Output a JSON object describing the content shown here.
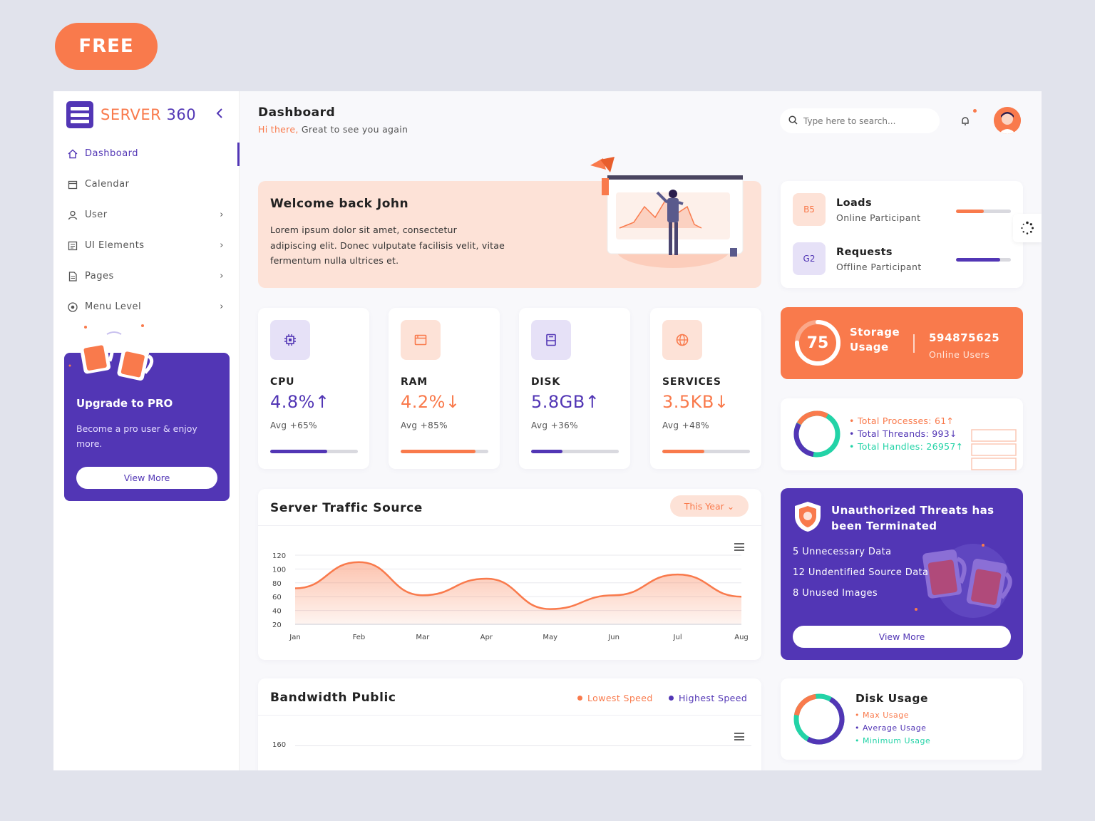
{
  "badge": "FREE",
  "brand": {
    "name_a": "SERVER",
    "name_b": "360"
  },
  "nav": [
    {
      "label": "Dashboard",
      "active": true
    },
    {
      "label": "Calendar"
    },
    {
      "label": "User"
    },
    {
      "label": "UI Elements"
    },
    {
      "label": "Pages"
    },
    {
      "label": "Menu Level"
    }
  ],
  "upgrade": {
    "title": "Upgrade to PRO",
    "text": "Become a pro user & enjoy more.",
    "button": "View More"
  },
  "header": {
    "title": "Dashboard",
    "greeting": "Hi there,",
    "subtitle": " Great to see you again"
  },
  "search": {
    "placeholder": "Type here to search..."
  },
  "welcome": {
    "title": "Welcome back John",
    "text": "Lorem ipsum dolor sit amet, consectetur adipiscing elit. Donec vulputate facilisis velit, vitae fermentum nulla ultrices et."
  },
  "stats": [
    {
      "label": "CPU",
      "value": "4.8%",
      "arrow": "↑",
      "avg": "Avg +65%",
      "color": "#5236b5",
      "bg": "#e6e1f7",
      "progress": 0.65
    },
    {
      "label": "RAM",
      "value": "4.2%",
      "arrow": "↓",
      "avg": "Avg +85%",
      "color": "#f97a4c",
      "bg": "#fde2d7",
      "progress": 0.85
    },
    {
      "label": "DISK",
      "value": "5.8GB",
      "arrow": "↑",
      "avg": "Avg +36%",
      "color": "#5236b5",
      "bg": "#e6e1f7",
      "progress": 0.36
    },
    {
      "label": "SERVICES",
      "value": "3.5KB",
      "arrow": "↓",
      "avg": "Avg +48%",
      "color": "#f97a4c",
      "bg": "#fde2d7",
      "progress": 0.48
    }
  ],
  "traffic": {
    "title": "Server Traffic Source",
    "period": "This Year",
    "chart_data": {
      "type": "area",
      "categories": [
        "Jan",
        "Feb",
        "Mar",
        "Apr",
        "May",
        "Jun",
        "Jul",
        "Aug"
      ],
      "values": [
        72,
        110,
        62,
        86,
        42,
        62,
        92,
        60
      ],
      "yticks": [
        20,
        40,
        60,
        80,
        100,
        120
      ],
      "ylim": [
        20,
        120
      ],
      "color": "#f97a4c"
    }
  },
  "bandwidth": {
    "title": "Bandwidth Public",
    "legend": [
      {
        "label": "Lowest Speed",
        "color": "#f97a4c"
      },
      {
        "label": "Highest Speed",
        "color": "#5236b5"
      }
    ],
    "y_top": "160"
  },
  "loads": [
    {
      "badge": "B5",
      "name": "Loads",
      "sub": "Online Participant",
      "progress": 0.5,
      "color": "#f97a4c",
      "bg": "#fde2d7"
    },
    {
      "badge": "G2",
      "name": "Requests",
      "sub": "Offline Participant",
      "progress": 0.8,
      "color": "#5236b5",
      "bg": "#e6e1f7"
    }
  ],
  "storage": {
    "value": "75",
    "label": "Storage Usage",
    "number": "594875625",
    "sub": "Online Users",
    "progress": 0.75
  },
  "processes": [
    {
      "text": "Total Processes: 61",
      "arrow": "↑",
      "color": "#f97a4c"
    },
    {
      "text": "Total Threands: 993",
      "arrow": "↓",
      "color": "#5236b5"
    },
    {
      "text": "Total Handles: 26957",
      "arrow": "↑",
      "color": "#23d3a7"
    }
  ],
  "threats": {
    "title": "Unauthorized Threats has been Terminated",
    "items": [
      "5 Unnecessary Data",
      "12 Undentified Source Data",
      "8 Unused Images"
    ],
    "button": "View More"
  },
  "disk_usage": {
    "title": "Disk Usage",
    "items": [
      {
        "label": "Max Usage",
        "color": "#f97a4c"
      },
      {
        "label": "Average Usage",
        "color": "#5236b5"
      },
      {
        "label": "Minimum Usage",
        "color": "#23d3a7"
      }
    ]
  }
}
